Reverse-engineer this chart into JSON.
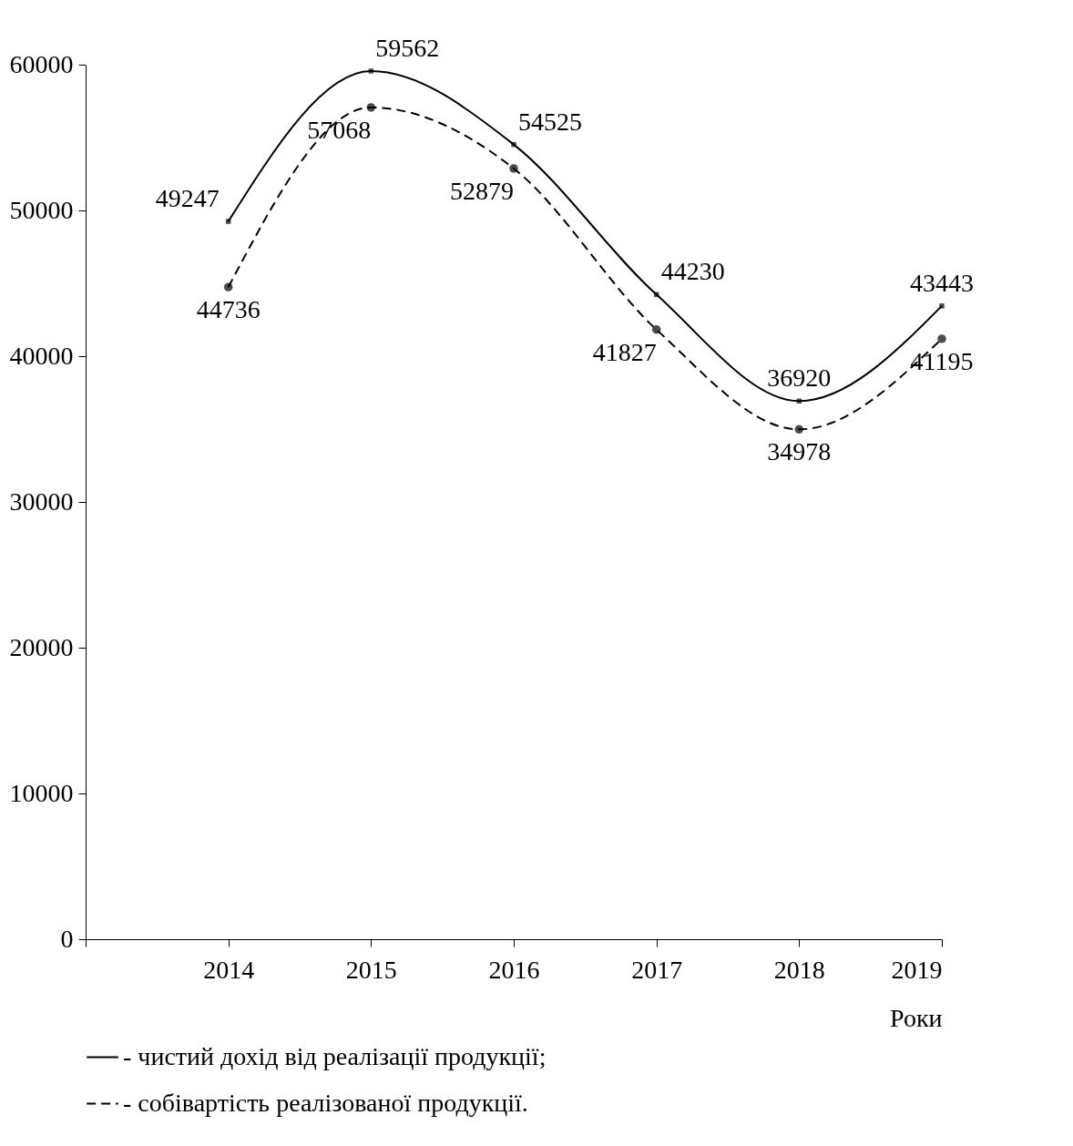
{
  "chart_data": {
    "type": "line",
    "x": [
      2014,
      2015,
      2016,
      2017,
      2018,
      2019
    ],
    "xlim": [
      2013,
      2019
    ],
    "xticks": [
      {
        "value": 2013,
        "label": null
      },
      2014,
      2015,
      2016,
      2017,
      2018,
      2019
    ],
    "ylim": [
      0,
      60000
    ],
    "yticks": [
      0,
      10000,
      20000,
      30000,
      40000,
      50000,
      60000
    ],
    "xlabel": "Роки",
    "grid": false,
    "legend": "bottom",
    "data_labels": true,
    "series": [
      {
        "name": "- чистий дохід від реалізації продукції;",
        "color": "#000000",
        "values": [
          49247,
          59562,
          54525,
          44230,
          36920,
          43443
        ],
        "line_style": "solid",
        "marker": "square"
      },
      {
        "name": "- собівартість реалізованої продукції.",
        "color": "#000000",
        "values": [
          44736,
          57068,
          52879,
          41827,
          34978,
          41195
        ],
        "line_style": "dashed",
        "marker": "circle"
      }
    ]
  }
}
